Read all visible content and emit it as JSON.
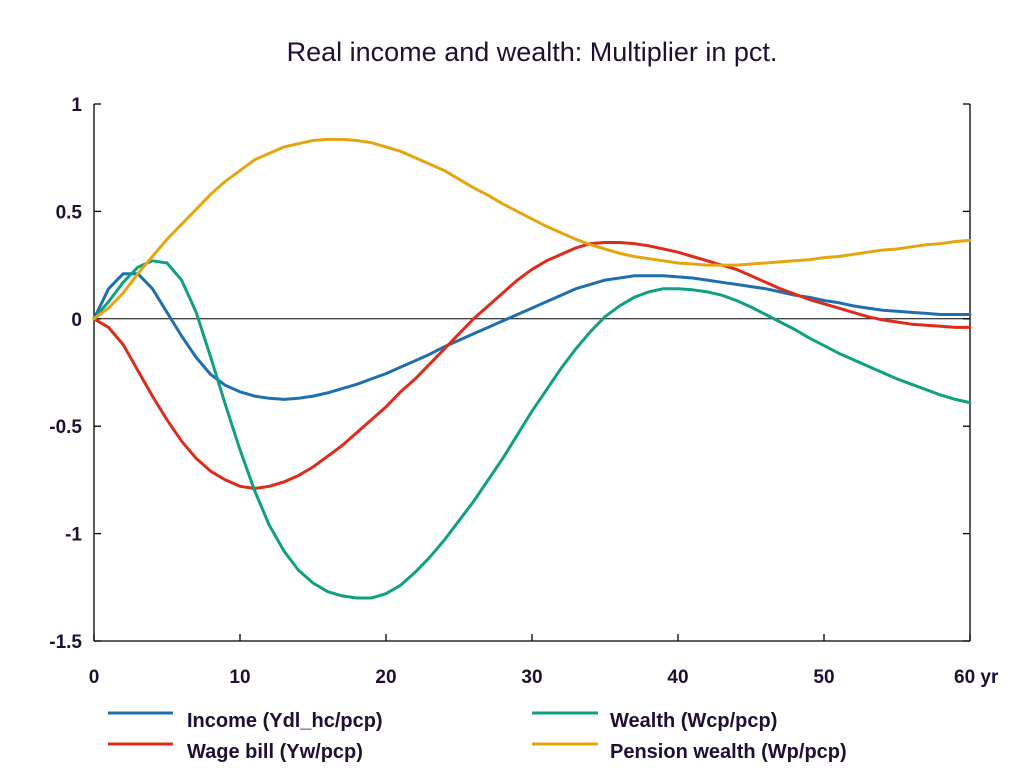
{
  "chart_data": {
    "type": "line",
    "title": "Real income and wealth: Multiplier in pct.",
    "xlabel": "",
    "ylabel": "",
    "xlim": [
      0,
      60
    ],
    "ylim": [
      -1.5,
      1
    ],
    "x_ticks": [
      0,
      10,
      20,
      30,
      40,
      50,
      60
    ],
    "x_tick_labels": [
      "0",
      "10",
      "20",
      "30",
      "40",
      "50",
      "60 yr"
    ],
    "y_ticks": [
      -1.5,
      -1,
      -0.5,
      0,
      0.5,
      1
    ],
    "y_tick_labels": [
      "-1.5",
      "-1",
      "-0.5",
      "0",
      "0.5",
      "1"
    ],
    "grid": false,
    "legend_position": "bottom",
    "x": [
      0,
      1,
      2,
      3,
      4,
      5,
      6,
      7,
      8,
      9,
      10,
      11,
      12,
      13,
      14,
      15,
      16,
      17,
      18,
      19,
      20,
      21,
      22,
      23,
      24,
      25,
      26,
      27,
      28,
      29,
      30,
      31,
      32,
      33,
      34,
      35,
      36,
      37,
      38,
      39,
      40,
      41,
      42,
      43,
      44,
      45,
      46,
      47,
      48,
      49,
      50,
      51,
      52,
      53,
      54,
      55,
      56,
      57,
      58,
      59,
      60
    ],
    "series": [
      {
        "name": "Income (Ydl_hc/pcp)",
        "color": "#1f6fae",
        "values": [
          0,
          0.14,
          0.21,
          0.21,
          0.14,
          0.03,
          -0.08,
          -0.18,
          -0.26,
          -0.31,
          -0.34,
          -0.36,
          -0.37,
          -0.375,
          -0.37,
          -0.36,
          -0.345,
          -0.325,
          -0.305,
          -0.28,
          -0.255,
          -0.225,
          -0.195,
          -0.165,
          -0.13,
          -0.1,
          -0.07,
          -0.04,
          -0.01,
          0.02,
          0.05,
          0.08,
          0.11,
          0.14,
          0.16,
          0.18,
          0.19,
          0.2,
          0.2,
          0.2,
          0.195,
          0.19,
          0.18,
          0.17,
          0.16,
          0.15,
          0.14,
          0.125,
          0.11,
          0.1,
          0.085,
          0.075,
          0.06,
          0.05,
          0.04,
          0.035,
          0.03,
          0.025,
          0.02,
          0.02,
          0.02
        ]
      },
      {
        "name": "Wage bill (Yw/pcp)",
        "color": "#dd2b1c",
        "values": [
          0,
          -0.04,
          -0.12,
          -0.24,
          -0.36,
          -0.47,
          -0.57,
          -0.65,
          -0.71,
          -0.75,
          -0.78,
          -0.79,
          -0.78,
          -0.76,
          -0.73,
          -0.69,
          -0.64,
          -0.59,
          -0.53,
          -0.47,
          -0.41,
          -0.34,
          -0.28,
          -0.21,
          -0.14,
          -0.07,
          0,
          0.06,
          0.12,
          0.18,
          0.23,
          0.27,
          0.3,
          0.33,
          0.35,
          0.355,
          0.355,
          0.35,
          0.34,
          0.325,
          0.31,
          0.29,
          0.27,
          0.25,
          0.23,
          0.2,
          0.17,
          0.14,
          0.115,
          0.09,
          0.07,
          0.05,
          0.03,
          0.01,
          -0.005,
          -0.015,
          -0.025,
          -0.03,
          -0.035,
          -0.04,
          -0.04
        ]
      },
      {
        "name": "Wealth (Wcp/pcp)",
        "color": "#10a081",
        "values": [
          0,
          0.08,
          0.17,
          0.24,
          0.27,
          0.26,
          0.18,
          0.03,
          -0.18,
          -0.4,
          -0.61,
          -0.8,
          -0.96,
          -1.08,
          -1.17,
          -1.23,
          -1.27,
          -1.29,
          -1.3,
          -1.3,
          -1.28,
          -1.24,
          -1.18,
          -1.11,
          -1.03,
          -0.94,
          -0.85,
          -0.75,
          -0.65,
          -0.54,
          -0.43,
          -0.33,
          -0.23,
          -0.14,
          -0.06,
          0.01,
          0.06,
          0.1,
          0.125,
          0.14,
          0.14,
          0.135,
          0.125,
          0.11,
          0.085,
          0.055,
          0.02,
          -0.015,
          -0.05,
          -0.09,
          -0.125,
          -0.16,
          -0.19,
          -0.22,
          -0.25,
          -0.28,
          -0.305,
          -0.33,
          -0.355,
          -0.375,
          -0.39
        ]
      },
      {
        "name": "Pension wealth (Wp/pcp)",
        "color": "#e5a50f",
        "values": [
          0,
          0.05,
          0.12,
          0.21,
          0.29,
          0.37,
          0.44,
          0.51,
          0.58,
          0.64,
          0.69,
          0.74,
          0.77,
          0.8,
          0.815,
          0.83,
          0.835,
          0.835,
          0.83,
          0.82,
          0.8,
          0.78,
          0.75,
          0.72,
          0.69,
          0.65,
          0.61,
          0.575,
          0.535,
          0.5,
          0.465,
          0.43,
          0.4,
          0.37,
          0.345,
          0.325,
          0.305,
          0.29,
          0.28,
          0.27,
          0.26,
          0.255,
          0.25,
          0.25,
          0.25,
          0.255,
          0.26,
          0.265,
          0.27,
          0.275,
          0.285,
          0.29,
          0.3,
          0.31,
          0.32,
          0.325,
          0.335,
          0.345,
          0.35,
          0.36,
          0.365
        ]
      }
    ]
  }
}
